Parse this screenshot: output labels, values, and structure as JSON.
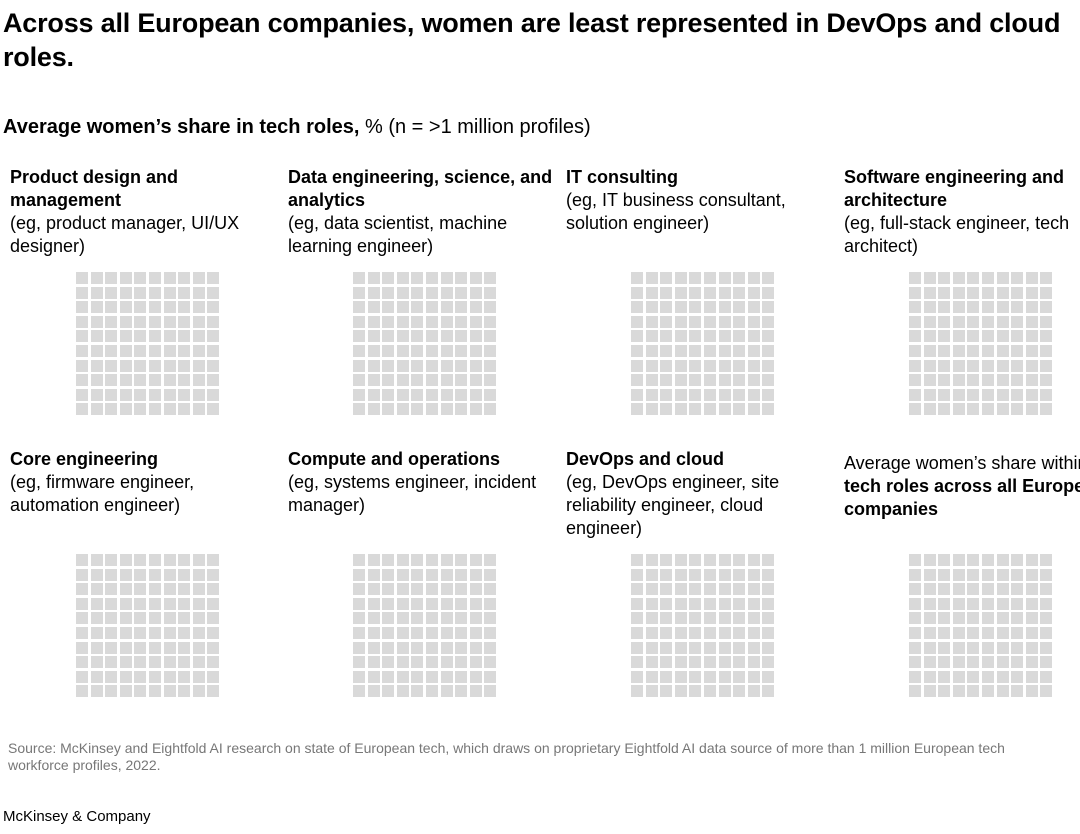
{
  "title": "Across all European companies, women are least represented in DevOps and cloud roles.",
  "subtitle": {
    "bold": "Average women’s share in tech roles,",
    "rest": " % (n = >1 million profiles)"
  },
  "chart_data": {
    "type": "waffle",
    "grid": "10x10",
    "cell_color": "#d9d9d9",
    "panels": [
      {
        "name": "Product design and management",
        "examples": "(eg, product manager, UI/UX designer)"
      },
      {
        "name": "Data engineering, science, and analytics",
        "examples": "(eg, data scientist, machine learning engineer)"
      },
      {
        "name": "IT consulting",
        "examples": "(eg, IT business consultant, solution engineer)"
      },
      {
        "name": "Software engineering and architecture",
        "examples": "(eg, full-stack engineer, tech architect)"
      },
      {
        "name": "Core engineering",
        "examples": "(eg, firmware engineer, automation engineer)"
      },
      {
        "name": "Compute and operations",
        "examples": "(eg, systems engineer, incident manager)"
      },
      {
        "name": "DevOps and cloud",
        "examples": "(eg, DevOps engineer, site reliability engineer, cloud engineer)"
      },
      {
        "name": "",
        "examples": "",
        "pre": "Average women’s share within ",
        "bold": "tech roles across all European companies"
      }
    ]
  },
  "source": "Source: McKinsey and Eightfold AI research on state of European tech, which draws on proprietary Eightfold AI data source of more than 1 million European tech workforce profiles, 2022.",
  "footer": "McKinsey & Company"
}
